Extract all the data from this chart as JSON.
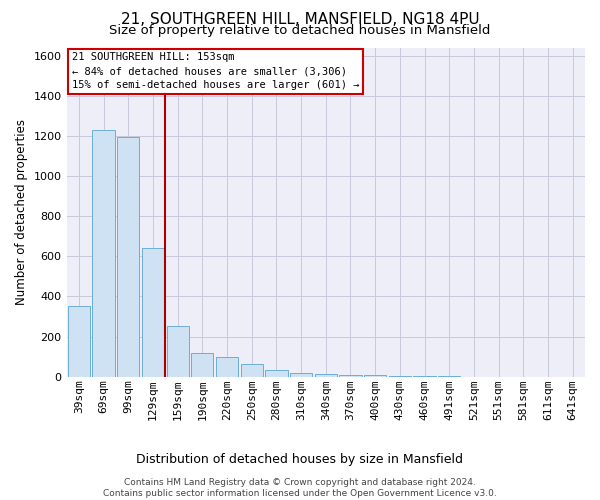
{
  "title1": "21, SOUTHGREEN HILL, MANSFIELD, NG18 4PU",
  "title2": "Size of property relative to detached houses in Mansfield",
  "xlabel": "Distribution of detached houses by size in Mansfield",
  "ylabel": "Number of detached properties",
  "footnote": "Contains HM Land Registry data © Crown copyright and database right 2024.\nContains public sector information licensed under the Open Government Licence v3.0.",
  "annotation_title": "21 SOUTHGREEN HILL: 153sqm",
  "annotation_line1": "← 84% of detached houses are smaller (3,306)",
  "annotation_line2": "15% of semi-detached houses are larger (601) →",
  "bar_color": "#cfe2f3",
  "bar_edge_color": "#6aaed6",
  "vline_color": "#aa0000",
  "vline_x_index": 3.5,
  "categories": [
    "39sqm",
    "69sqm",
    "99sqm",
    "129sqm",
    "159sqm",
    "190sqm",
    "220sqm",
    "250sqm",
    "280sqm",
    "310sqm",
    "340sqm",
    "370sqm",
    "400sqm",
    "430sqm",
    "460sqm",
    "491sqm",
    "521sqm",
    "551sqm",
    "581sqm",
    "611sqm",
    "641sqm"
  ],
  "values": [
    350,
    1230,
    1195,
    640,
    255,
    120,
    100,
    65,
    35,
    20,
    15,
    10,
    8,
    5,
    3,
    2,
    1,
    0,
    0,
    0,
    0
  ],
  "ylim": [
    0,
    1640
  ],
  "yticks": [
    0,
    200,
    400,
    600,
    800,
    1000,
    1200,
    1400,
    1600
  ],
  "grid_color": "#c8c8dc",
  "background_color": "#eeeef8",
  "box_facecolor": "white",
  "box_edgecolor": "#cc0000",
  "title1_fontsize": 11,
  "title2_fontsize": 9.5,
  "axis_label_fontsize": 8.5,
  "tick_fontsize": 8,
  "annotation_fontsize": 7.5,
  "footnote_fontsize": 6.5
}
